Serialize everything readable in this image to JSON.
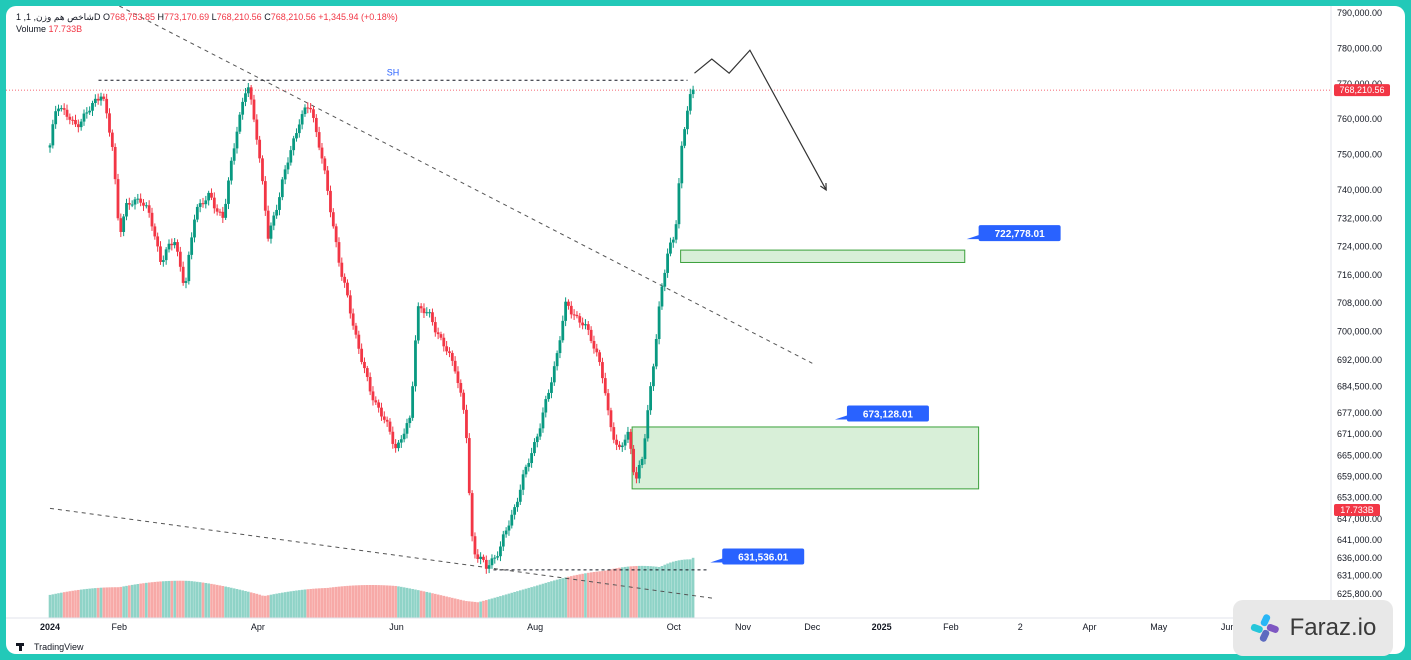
{
  "legend": {
    "symbol": "1 ,شاخص هم وزن, 1D",
    "open_label": "O",
    "open": "768,753.85",
    "high_label": "H",
    "high": "773,170.69",
    "low_label": "L",
    "low": "768,210.56",
    "close_label": "C",
    "close": "768,210.56",
    "change": "+1,345.94 (+0.18%)",
    "volume_label": "Volume",
    "volume": "17.733B"
  },
  "footer": {
    "brand": "TradingView"
  },
  "watermark": {
    "text": "Faraz.io"
  },
  "colors": {
    "up": "#089981",
    "down": "#f23645",
    "vol_up": "#8fd3c7",
    "vol_down": "#f7a9a7",
    "zone_fill": "#d8efd8",
    "zone_stroke": "#3aa03a",
    "label_bg": "#2962ff"
  },
  "chart_data": {
    "type": "candlestick",
    "y_range": [
      619000,
      792000
    ],
    "y_ticks": [
      "790,000.00",
      "780,000.00",
      "770,000.00",
      "760,000.00",
      "750,000.00",
      "740,000.00",
      "732,000.00",
      "724,000.00",
      "716,000.00",
      "708,000.00",
      "700,000.00",
      "692,000.00",
      "684,500.00",
      "677,000.00",
      "671,000.00",
      "665,000.00",
      "659,000.00",
      "653,000.00",
      "647,000.00",
      "641,000.00",
      "636,000.00",
      "631,000.00",
      "625,800.00"
    ],
    "x_labels": [
      "2024",
      "Feb",
      "Apr",
      "Jun",
      "Aug",
      "Oct",
      "Nov",
      "Dec",
      "2025",
      "Feb",
      "2",
      "Apr",
      "May",
      "Jun"
    ],
    "x_positions": [
      0.0,
      1.0,
      3.0,
      5.0,
      7.0,
      9.0,
      10.0,
      11.0,
      12.0,
      13.0,
      14.0,
      15.0,
      16.0,
      17.0
    ],
    "path_keys": [
      [
        0,
        752000
      ],
      [
        0.1,
        765000
      ],
      [
        0.35,
        758000
      ],
      [
        0.55,
        762000
      ],
      [
        0.75,
        768000
      ],
      [
        0.9,
        752000
      ],
      [
        1.0,
        728000
      ],
      [
        1.1,
        735000
      ],
      [
        1.3,
        738000
      ],
      [
        1.45,
        732000
      ],
      [
        1.6,
        720000
      ],
      [
        1.8,
        726000
      ],
      [
        1.95,
        712000
      ],
      [
        2.1,
        735000
      ],
      [
        2.3,
        738000
      ],
      [
        2.5,
        732000
      ],
      [
        2.7,
        758000
      ],
      [
        2.85,
        770000
      ],
      [
        3.0,
        754000
      ],
      [
        3.15,
        726000
      ],
      [
        3.35,
        742000
      ],
      [
        3.6,
        760000
      ],
      [
        3.75,
        764000
      ],
      [
        3.9,
        752000
      ],
      [
        4.05,
        734000
      ],
      [
        4.2,
        717000
      ],
      [
        4.4,
        700000
      ],
      [
        4.6,
        684000
      ],
      [
        4.8,
        676000
      ],
      [
        5.0,
        667000
      ],
      [
        5.2,
        675000
      ],
      [
        5.3,
        707000
      ],
      [
        5.5,
        704000
      ],
      [
        5.65,
        697000
      ],
      [
        5.85,
        690000
      ],
      [
        6.0,
        674000
      ],
      [
        6.05,
        654000
      ],
      [
        6.1,
        639000
      ],
      [
        6.3,
        633000
      ],
      [
        6.5,
        639000
      ],
      [
        6.7,
        650000
      ],
      [
        6.9,
        663000
      ],
      [
        7.1,
        675000
      ],
      [
        7.3,
        692000
      ],
      [
        7.45,
        708000
      ],
      [
        7.6,
        704000
      ],
      [
        7.8,
        699000
      ],
      [
        7.95,
        690000
      ],
      [
        8.05,
        677000
      ],
      [
        8.2,
        666000
      ],
      [
        8.35,
        671000
      ],
      [
        8.45,
        658000
      ],
      [
        8.55,
        664000
      ],
      [
        8.7,
        690000
      ],
      [
        8.8,
        708000
      ],
      [
        8.92,
        723000
      ],
      [
        9.02,
        728000
      ],
      [
        9.12,
        752000
      ],
      [
        9.22,
        766000
      ],
      [
        9.28,
        768500
      ]
    ],
    "volume_keys": [
      [
        0,
        0.28
      ],
      [
        1.0,
        0.22
      ],
      [
        2.0,
        0.26
      ],
      [
        3.0,
        0.27
      ],
      [
        4.0,
        0.22
      ],
      [
        5.0,
        0.22
      ],
      [
        6.0,
        0.18
      ],
      [
        7.0,
        0.24
      ],
      [
        8.0,
        0.32
      ],
      [
        8.8,
        0.45
      ],
      [
        9.28,
        0.72
      ]
    ],
    "current_price": 768210.56,
    "current_price_label": "768,210.56",
    "current_volume_label": "17.733B",
    "swing_high": {
      "label": "SH",
      "value": 771000,
      "x_from": 0.7,
      "x_to": 9.2
    },
    "support_line": {
      "value": 632600,
      "x_from": 6.4,
      "x_to": 9.5
    },
    "trendline_upper": [
      [
        1.0,
        792000
      ],
      [
        11.0,
        691000
      ]
    ],
    "trendline_lower": [
      [
        0.0,
        650000
      ],
      [
        9.6,
        624500
      ]
    ],
    "zones": [
      {
        "y_low": 719500,
        "y_high": 723000,
        "x_from": 9.1,
        "x_to": 13.2
      },
      {
        "y_low": 655500,
        "y_high": 673000,
        "x_from": 8.4,
        "x_to": 13.4
      }
    ],
    "price_labels": [
      {
        "text": "722,778.01",
        "value": 722778.01,
        "x": 13.4,
        "y_anchor": 727800
      },
      {
        "text": "673,128.01",
        "value": 673128.01,
        "x": 11.5,
        "y_anchor": 676800
      },
      {
        "text": "631,536.01",
        "value": 631536.01,
        "x": 9.7,
        "y_anchor": 636400
      }
    ],
    "projection": [
      [
        9.3,
        773000
      ],
      [
        9.55,
        777000
      ],
      [
        9.8,
        773000
      ],
      [
        10.1,
        779500
      ],
      [
        11.2,
        740000
      ]
    ]
  }
}
